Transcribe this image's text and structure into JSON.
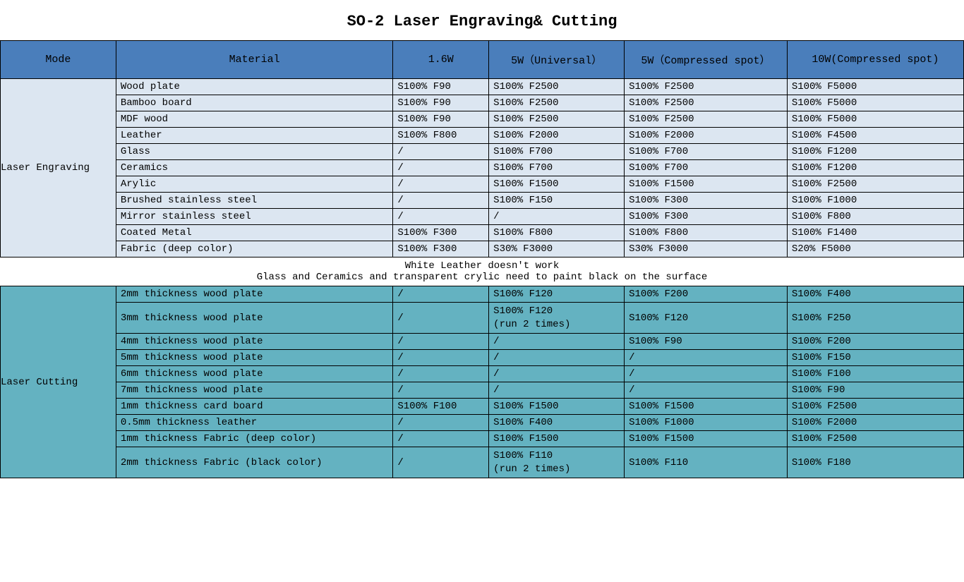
{
  "title": "SO-2 Laser Engraving& Cutting",
  "columns": {
    "mode": "Mode",
    "material": "Material",
    "w1": "1.6W",
    "w2": "5W（Universal）",
    "w3": "5W（Compressed spot）",
    "w4": "10W(Compressed spot)"
  },
  "engraving": {
    "mode_label": "Laser Engraving",
    "rows": [
      {
        "material": "Wood plate",
        "w1": "S100% F90",
        "w2": "S100% F2500",
        "w3": "S100% F2500",
        "w4": "S100% F5000"
      },
      {
        "material": "Bamboo board",
        "w1": "S100% F90",
        "w2": "S100% F2500",
        "w3": "S100% F2500",
        "w4": "S100% F5000"
      },
      {
        "material": "MDF wood",
        "w1": "S100% F90",
        "w2": "S100% F2500",
        "w3": "S100% F2500",
        "w4": "S100% F5000"
      },
      {
        "material": "Leather",
        "w1": "S100% F800",
        "w2": "S100% F2000",
        "w3": "S100% F2000",
        "w4": "S100% F4500"
      },
      {
        "material": "Glass",
        "w1": "/",
        "w2": "S100% F700",
        "w3": "S100% F700",
        "w4": "S100% F1200"
      },
      {
        "material": "Ceramics",
        "w1": "/",
        "w2": "S100% F700",
        "w3": "S100% F700",
        "w4": "S100% F1200"
      },
      {
        "material": "Arylic",
        "w1": "/",
        "w2": "S100% F1500",
        "w3": "S100% F1500",
        "w4": "S100% F2500"
      },
      {
        "material": "Brushed stainless steel",
        "w1": "/",
        "w2": "S100% F150",
        "w3": "S100% F300",
        "w4": "S100% F1000"
      },
      {
        "material": "Mirror stainless steel",
        "w1": "/",
        "w2": "/",
        "w3": "S100% F300",
        "w4": "S100% F800"
      },
      {
        "material": "Coated Metal",
        "w1": "S100% F300",
        "w2": "S100% F800",
        "w3": "S100% F800",
        "w4": "S100% F1400"
      },
      {
        "material": "Fabric (deep color)",
        "w1": "S100% F300",
        "w2": "S30% F3000",
        "w3": "S30% F3000",
        "w4": "S20% F5000"
      }
    ]
  },
  "notes": {
    "line1": "White Leather doesn't work",
    "line2": "Glass and Ceramics and transparent crylic need to paint black on the surface"
  },
  "cutting": {
    "mode_label": "Laser Cutting",
    "rows": [
      {
        "material": "2mm thickness wood plate",
        "w1": "/",
        "w2": "S100% F120",
        "w3": "S100% F200",
        "w4": "S100% F400"
      },
      {
        "material": "3mm thickness wood plate",
        "w1": "/",
        "w2": "S100% F120\n (run 2 times)",
        "w3": "S100% F120",
        "w4": "S100% F250",
        "multi": true
      },
      {
        "material": "4mm thickness wood plate",
        "w1": "/",
        "w2": "/",
        "w3": "S100% F90",
        "w4": "S100% F200"
      },
      {
        "material": "5mm thickness wood plate",
        "w1": "/",
        "w2": "/",
        "w3": "/",
        "w4": "S100% F150"
      },
      {
        "material": "6mm thickness wood plate",
        "w1": "/",
        "w2": "/",
        "w3": "/",
        "w4": "S100% F100"
      },
      {
        "material": "7mm thickness wood plate",
        "w1": "/",
        "w2": "/",
        "w3": "/",
        "w4": "S100% F90"
      },
      {
        "material": "1mm thickness card board",
        "w1": "S100% F100",
        "w2": "S100% F1500",
        "w3": "S100% F1500",
        "w4": "S100% F2500"
      },
      {
        "material": "0.5mm thickness leather",
        "w1": "/",
        "w2": "S100% F400",
        "w3": "S100% F1000",
        "w4": "S100% F2000"
      },
      {
        "material": "1mm thickness Fabric (deep color)",
        "w1": "/",
        "w2": "S100% F1500",
        "w3": "S100% F1500",
        "w4": "S100% F2500"
      },
      {
        "material": "2mm thickness Fabric (black color)",
        "w1": "/",
        "w2": "S100% F110\n (run 2 times)",
        "w3": "S100% F110",
        "w4": "S100% F180",
        "multi": true
      }
    ]
  },
  "style": {
    "header_bg": "#4a7ebb",
    "engraving_bg": "#dce6f1",
    "cutting_bg": "#64b2c1",
    "border_color": "#000000",
    "title_fontsize": 22,
    "cell_fontsize": 14,
    "header_fontsize": 15
  }
}
